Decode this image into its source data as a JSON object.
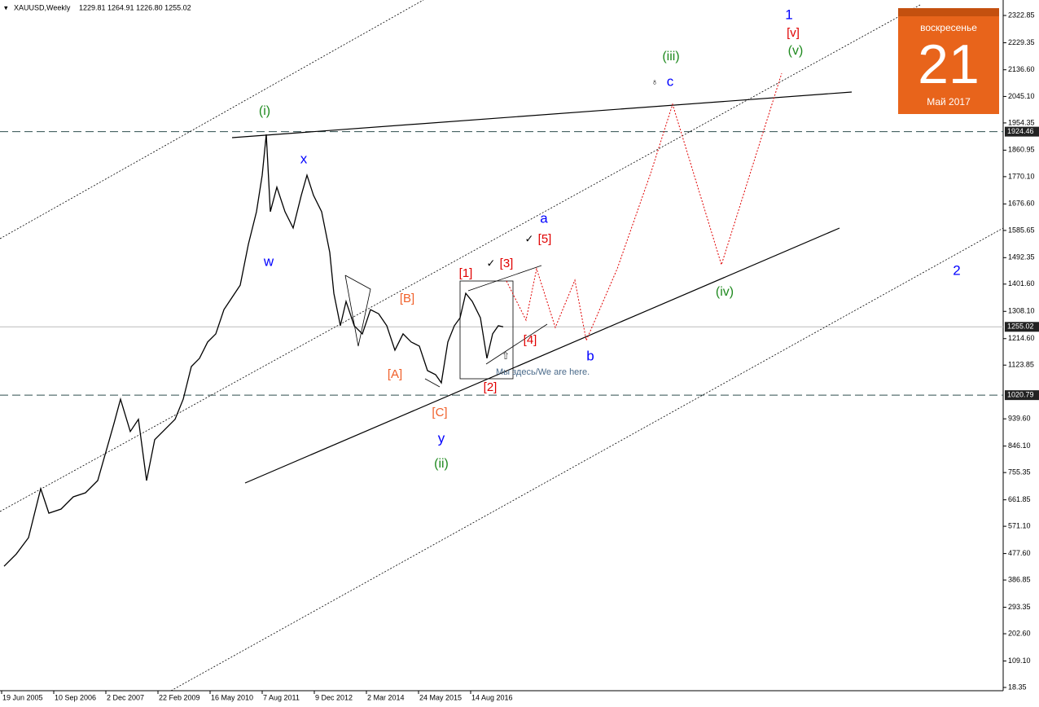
{
  "chart_data": {
    "type": "line",
    "title": "XAUUSD,Weekly",
    "quote": "1229.81 1264.91 1226.80 1255.02",
    "color": "#000000",
    "x": [
      3,
      18,
      33,
      48,
      58,
      73,
      88,
      103,
      118,
      128,
      138,
      146,
      158,
      168,
      178,
      188,
      198,
      213,
      223,
      233,
      243,
      253,
      263,
      273,
      283,
      293,
      303,
      313,
      320,
      325,
      330,
      338,
      348,
      358,
      368,
      375,
      383,
      393,
      403,
      408,
      416,
      423,
      433,
      443,
      453,
      463,
      473,
      483,
      493,
      503,
      513,
      523,
      533,
      540,
      548,
      556,
      563,
      570,
      578,
      588,
      596,
      603,
      610,
      616
    ],
    "values": [
      434,
      476,
      532,
      700,
      616,
      630,
      672,
      686,
      728,
      826,
      924,
      1007,
      896,
      938,
      728,
      868,
      896,
      938,
      1007,
      1119,
      1147,
      1203,
      1231,
      1314,
      1356,
      1398,
      1538,
      1650,
      1775,
      1915,
      1650,
      1734,
      1650,
      1594,
      1706,
      1775,
      1706,
      1650,
      1510,
      1370,
      1259,
      1342,
      1259,
      1231,
      1314,
      1300,
      1259,
      1175,
      1231,
      1203,
      1189,
      1105,
      1091,
      1063,
      1203,
      1259,
      1286,
      1370,
      1342,
      1286,
      1147,
      1231,
      1259,
      1255
    ],
    "xlim": [
      0,
      1230
    ],
    "xticks": [
      {
        "value": 0,
        "label": "19 Jun 2005"
      },
      {
        "value": 64,
        "label": "10 Sep 2006"
      },
      {
        "value": 128,
        "label": "2 Dec 2007"
      },
      {
        "value": 192,
        "label": "22 Feb 2009"
      },
      {
        "value": 256,
        "label": "16 May 2010"
      },
      {
        "value": 320,
        "label": "7 Aug 2011"
      },
      {
        "value": 384,
        "label": "9 Dec 2012"
      },
      {
        "value": 448,
        "label": "2 Mar 2014"
      },
      {
        "value": 512,
        "label": "24 May 2015"
      },
      {
        "value": 576,
        "label": "14 Aug 2016"
      }
    ],
    "ylim": [
      7.2,
      2375.9
    ],
    "yticks": [
      2322.85,
      2229.35,
      {
        "value": 2136.6,
        "label": "2136.60"
      },
      {
        "value": 2045.1,
        "label": "2045.10"
      },
      1954.35,
      1860.95,
      {
        "value": 1770.1,
        "label": "1770.10"
      },
      {
        "value": 1676.6,
        "label": "1676.60"
      },
      1585.65,
      1492.35,
      {
        "value": 1401.6,
        "label": "1401.60"
      },
      {
        "value": 1308.1,
        "label": "1308.10"
      },
      {
        "value": 1214.6,
        "label": "1214.60"
      },
      1123.85,
      {
        "value": 939.6,
        "label": "939.60"
      },
      {
        "value": 846.1,
        "label": "846.10"
      },
      755.35,
      661.85,
      {
        "value": 571.1,
        "label": "571.10"
      },
      {
        "value": 477.6,
        "label": "477.60"
      },
      386.85,
      293.35,
      {
        "value": 202.6,
        "label": "202.60"
      },
      {
        "value": 109.1,
        "label": "109.10"
      },
      18.35
    ],
    "levels": [
      1924.46,
      1020.79
    ],
    "last_price": 1255.02
  },
  "waves": [
    "(i)",
    "w",
    "x",
    "[B]",
    "[A]",
    "[C]",
    "y",
    "(ii)",
    "[1]",
    "[2]",
    "[3]",
    "[4]",
    "[5]",
    "a",
    "b",
    "c",
    "(iii)",
    "1",
    "[v]",
    "(v)",
    "(iv)",
    "2"
  ],
  "note": "Мы здесь/We are here.",
  "calendar": {
    "weekday": "воскресенье",
    "day": "21",
    "month": "Май 2017"
  }
}
